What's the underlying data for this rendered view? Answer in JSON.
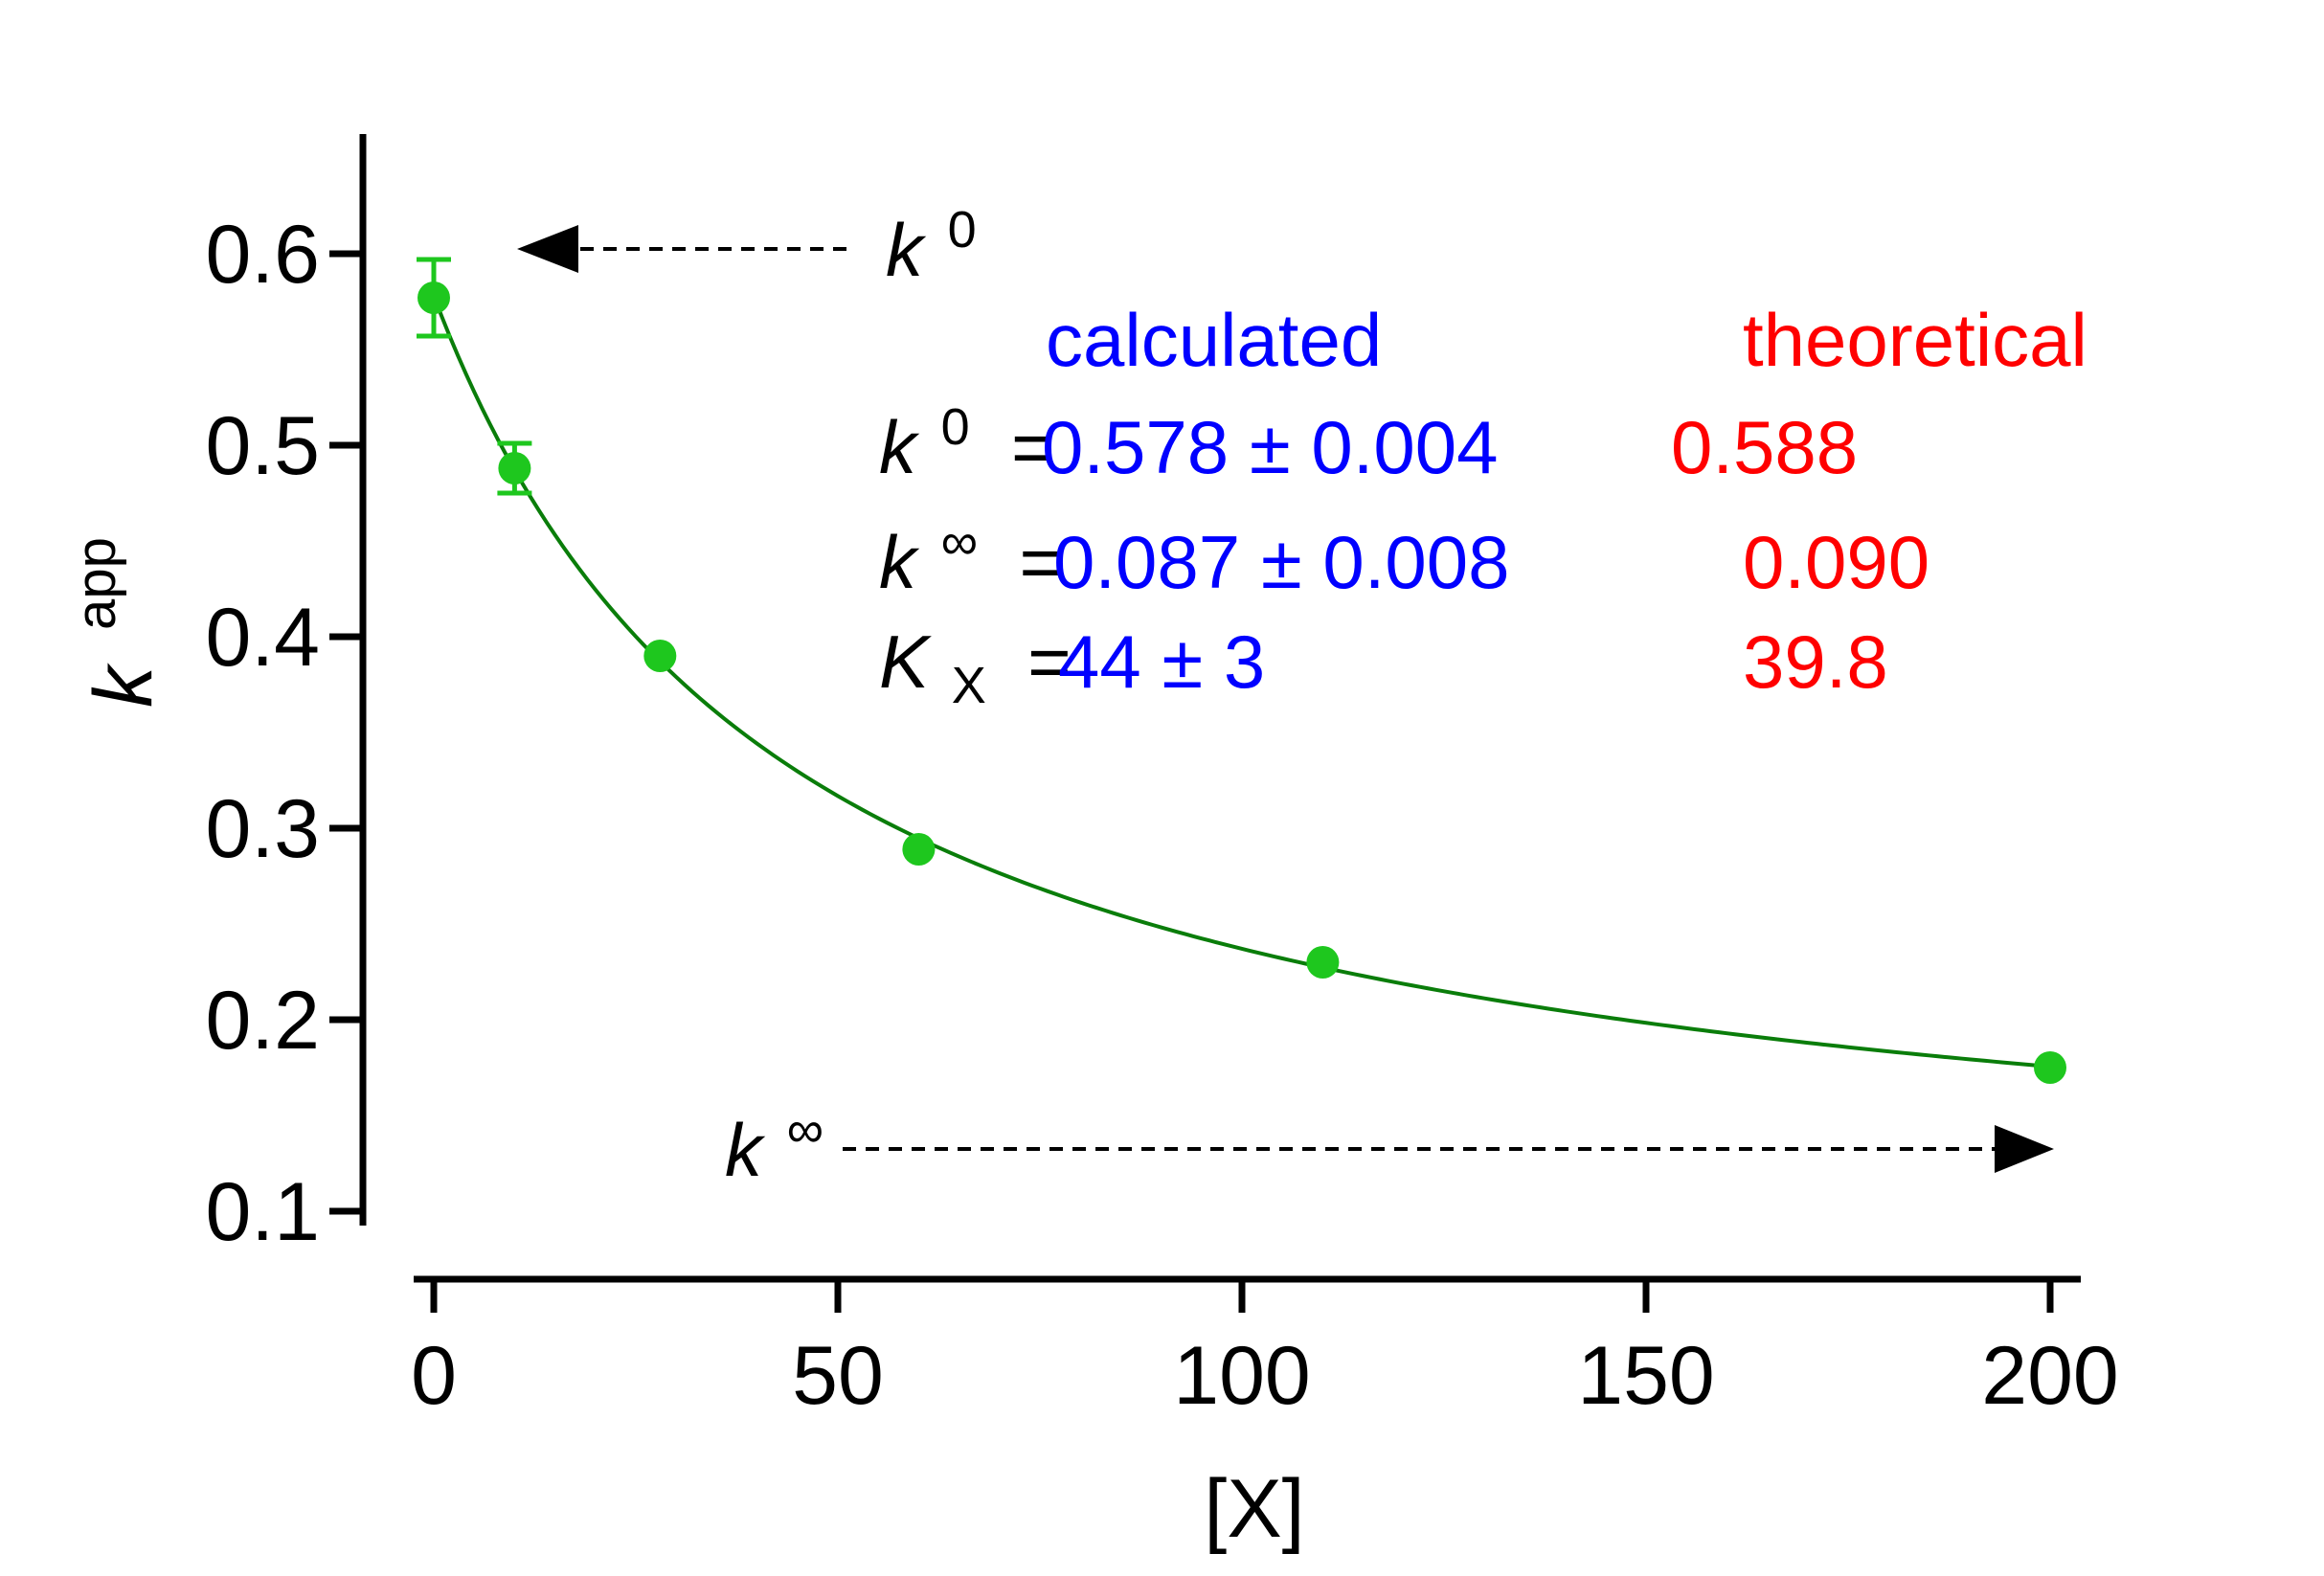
{
  "chart_data": {
    "type": "scatter",
    "xlabel": "[X]",
    "ylabel": {
      "main": "k",
      "sup": "app"
    },
    "xlim": [
      0,
      200
    ],
    "ylim": [
      0.05,
      0.65
    ],
    "x_ticks": [
      0,
      50,
      100,
      150,
      200
    ],
    "y_ticks": [
      0.1,
      0.2,
      0.3,
      0.4,
      0.5,
      0.6
    ],
    "x_tick_labels": [
      "0",
      "50",
      "100",
      "150",
      "200"
    ],
    "y_tick_labels": [
      "0.1",
      "0.2",
      "0.3",
      "0.4",
      "0.5",
      "0.6"
    ],
    "grid": false,
    "series": [
      {
        "points": [
          {
            "x": 0,
            "y": 0.577,
            "err": 0.02
          },
          {
            "x": 10,
            "y": 0.488,
            "err": 0.013
          },
          {
            "x": 28,
            "y": 0.39,
            "err": 0
          },
          {
            "x": 60,
            "y": 0.289,
            "err": 0
          },
          {
            "x": 110,
            "y": 0.23,
            "err": 0
          },
          {
            "x": 200,
            "y": 0.175,
            "err": 0
          }
        ],
        "fit": {
          "k0": 0.578,
          "kinf": 0.087,
          "KX": 44
        }
      }
    ],
    "colors": {
      "points": "#1ec71e",
      "fit_line": "#0a7d0a",
      "calculated": "#0000ff",
      "theoretical": "#ff0000",
      "text": "#000000"
    },
    "annotations": {
      "k0_arrow_label": {
        "main": "k",
        "sup": "0"
      },
      "kinf_arrow_label": {
        "main": "k",
        "sup": "∞"
      },
      "calculated_header": "calculated",
      "theoretical_header": "theoretical",
      "rows": [
        {
          "sym": "k",
          "script": "0",
          "script_type": "sup",
          "eq": " = ",
          "calc": "0.578 ± 0.004",
          "theo": "0.588"
        },
        {
          "sym": "k",
          "script": "∞",
          "script_type": "sup",
          "eq": " = ",
          "calc": "0.087 ± 0.008",
          "theo": "0.090"
        },
        {
          "sym": "K",
          "script": "X",
          "script_type": "sub",
          "eq": " = ",
          "calc": "44 ± 3",
          "theo": "39.8"
        }
      ]
    }
  }
}
